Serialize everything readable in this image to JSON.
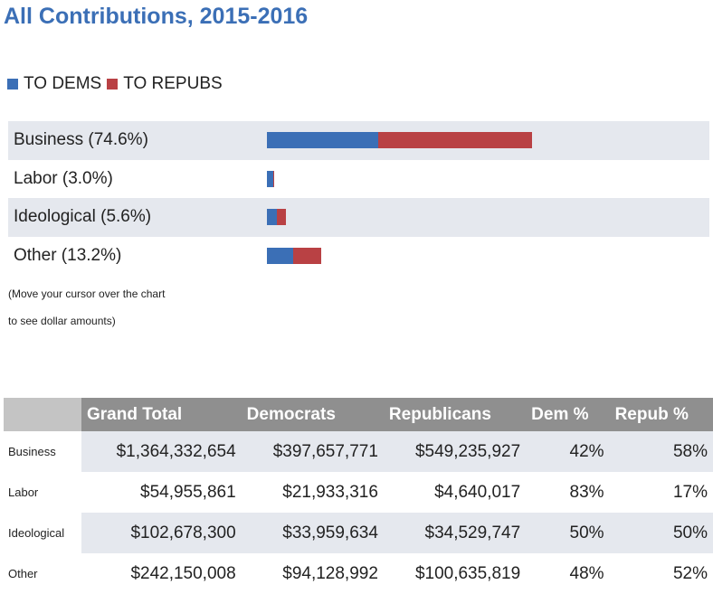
{
  "title": "All Contributions, 2015-2016",
  "legend": [
    {
      "label": "TO DEMS",
      "color": "#3b6fb6"
    },
    {
      "label": "TO REPUBS",
      "color": "#b94144"
    }
  ],
  "note_lines": [
    "(Move your cursor over the chart",
    "to see dollar amounts)"
  ],
  "chart_data": {
    "type": "bar",
    "orientation": "horizontal",
    "stacked": true,
    "categories": [
      "Business (74.6%)",
      "Labor (3.0%)",
      "Ideological (5.6%)",
      "Other (13.2%)"
    ],
    "series": [
      {
        "name": "TO DEMS",
        "color": "#3b6fb6",
        "values": [
          397657771,
          21933316,
          33959634,
          94128992
        ]
      },
      {
        "name": "TO REPUBS",
        "color": "#b94144",
        "values": [
          549235927,
          4640017,
          34529747,
          100635819
        ]
      }
    ],
    "legend_position": "top-left"
  },
  "table": {
    "headers": [
      "Grand Total",
      "Democrats",
      "Republicans",
      "Dem %",
      "Repub %"
    ],
    "rows": [
      {
        "label": "Business",
        "cells": [
          "$1,364,332,654",
          "$397,657,771",
          "$549,235,927",
          "42%",
          "58%"
        ]
      },
      {
        "label": "Labor",
        "cells": [
          "$54,955,861",
          "$21,933,316",
          "$4,640,017",
          "83%",
          "17%"
        ]
      },
      {
        "label": "Ideological",
        "cells": [
          "$102,678,300",
          "$33,959,634",
          "$34,529,747",
          "50%",
          "50%"
        ]
      },
      {
        "label": "Other",
        "cells": [
          "$242,150,008",
          "$94,128,992",
          "$100,635,819",
          "48%",
          "52%"
        ]
      }
    ]
  }
}
